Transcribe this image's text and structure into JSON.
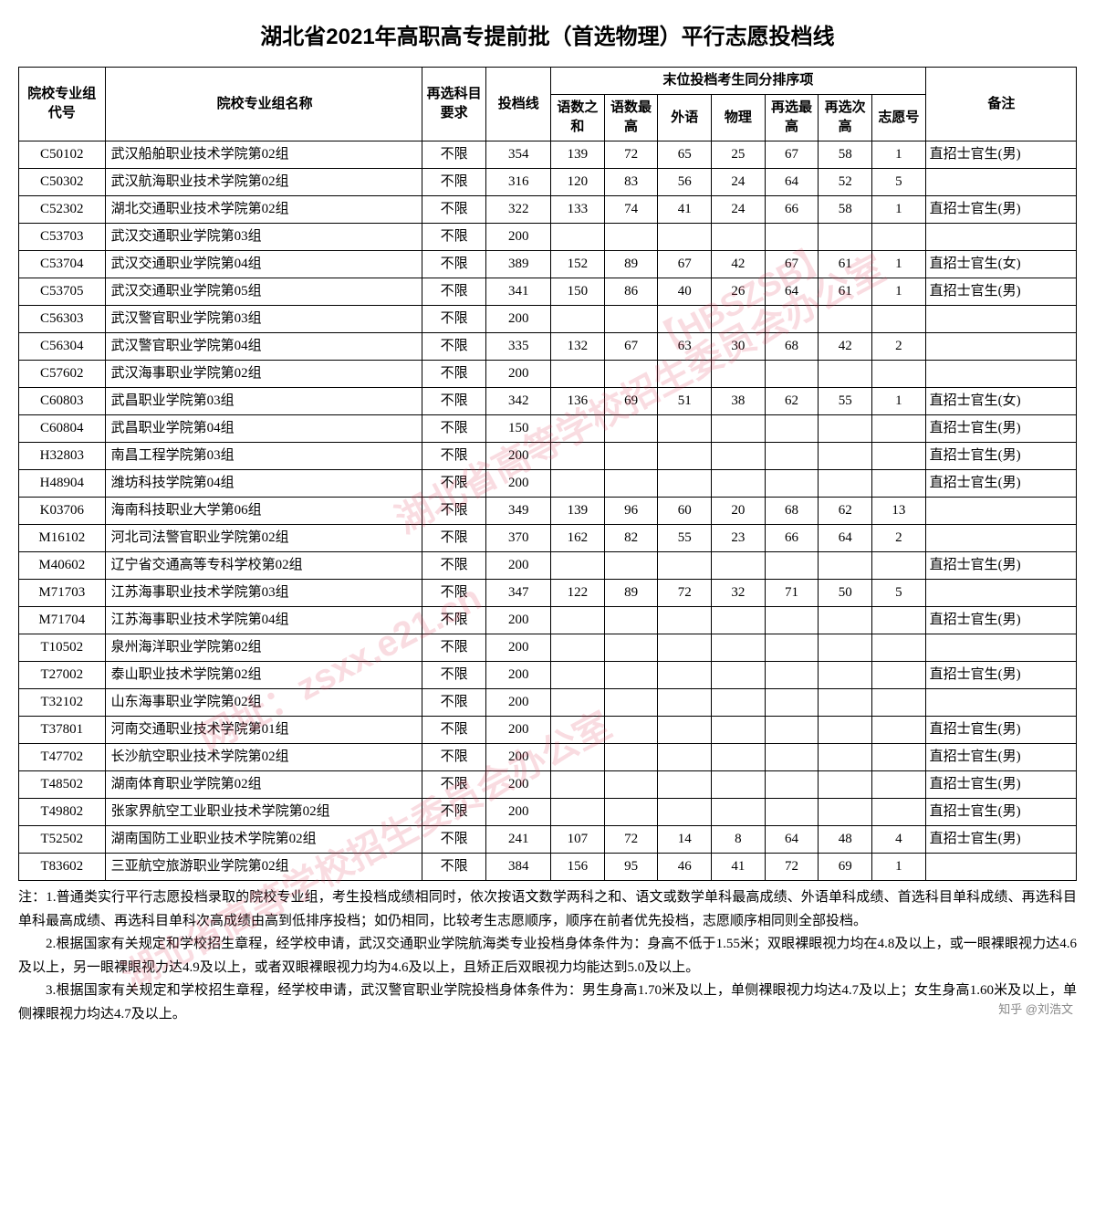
{
  "title": "湖北省2021年高职高专提前批（首选物理）平行志愿投档线",
  "headers": {
    "code": "院校专业组代号",
    "name": "院校专业组名称",
    "requirement": "再选科目要求",
    "score": "投档线",
    "tiebreak_group": "末位投档考生同分排序项",
    "sub1": "语数之和",
    "sub2": "语数最高",
    "sub3": "外语",
    "sub4": "物理",
    "sub5": "再选最高",
    "sub6": "再选次高",
    "sub7": "志愿号",
    "note": "备注"
  },
  "rows": [
    {
      "code": "C50102",
      "name": "武汉船舶职业技术学院第02组",
      "req": "不限",
      "score": "354",
      "s1": "139",
      "s2": "72",
      "s3": "65",
      "s4": "25",
      "s5": "67",
      "s6": "58",
      "s7": "1",
      "note": "直招士官生(男)"
    },
    {
      "code": "C50302",
      "name": "武汉航海职业技术学院第02组",
      "req": "不限",
      "score": "316",
      "s1": "120",
      "s2": "83",
      "s3": "56",
      "s4": "24",
      "s5": "64",
      "s6": "52",
      "s7": "5",
      "note": ""
    },
    {
      "code": "C52302",
      "name": "湖北交通职业技术学院第02组",
      "req": "不限",
      "score": "322",
      "s1": "133",
      "s2": "74",
      "s3": "41",
      "s4": "24",
      "s5": "66",
      "s6": "58",
      "s7": "1",
      "note": "直招士官生(男)"
    },
    {
      "code": "C53703",
      "name": "武汉交通职业学院第03组",
      "req": "不限",
      "score": "200",
      "s1": "",
      "s2": "",
      "s3": "",
      "s4": "",
      "s5": "",
      "s6": "",
      "s7": "",
      "note": ""
    },
    {
      "code": "C53704",
      "name": "武汉交通职业学院第04组",
      "req": "不限",
      "score": "389",
      "s1": "152",
      "s2": "89",
      "s3": "67",
      "s4": "42",
      "s5": "67",
      "s6": "61",
      "s7": "1",
      "note": "直招士官生(女)"
    },
    {
      "code": "C53705",
      "name": "武汉交通职业学院第05组",
      "req": "不限",
      "score": "341",
      "s1": "150",
      "s2": "86",
      "s3": "40",
      "s4": "26",
      "s5": "64",
      "s6": "61",
      "s7": "1",
      "note": "直招士官生(男)"
    },
    {
      "code": "C56303",
      "name": "武汉警官职业学院第03组",
      "req": "不限",
      "score": "200",
      "s1": "",
      "s2": "",
      "s3": "",
      "s4": "",
      "s5": "",
      "s6": "",
      "s7": "",
      "note": ""
    },
    {
      "code": "C56304",
      "name": "武汉警官职业学院第04组",
      "req": "不限",
      "score": "335",
      "s1": "132",
      "s2": "67",
      "s3": "63",
      "s4": "30",
      "s5": "68",
      "s6": "42",
      "s7": "2",
      "note": ""
    },
    {
      "code": "C57602",
      "name": "武汉海事职业学院第02组",
      "req": "不限",
      "score": "200",
      "s1": "",
      "s2": "",
      "s3": "",
      "s4": "",
      "s5": "",
      "s6": "",
      "s7": "",
      "note": ""
    },
    {
      "code": "C60803",
      "name": "武昌职业学院第03组",
      "req": "不限",
      "score": "342",
      "s1": "136",
      "s2": "69",
      "s3": "51",
      "s4": "38",
      "s5": "62",
      "s6": "55",
      "s7": "1",
      "note": "直招士官生(女)"
    },
    {
      "code": "C60804",
      "name": "武昌职业学院第04组",
      "req": "不限",
      "score": "150",
      "s1": "",
      "s2": "",
      "s3": "",
      "s4": "",
      "s5": "",
      "s6": "",
      "s7": "",
      "note": "直招士官生(男)"
    },
    {
      "code": "H32803",
      "name": "南昌工程学院第03组",
      "req": "不限",
      "score": "200",
      "s1": "",
      "s2": "",
      "s3": "",
      "s4": "",
      "s5": "",
      "s6": "",
      "s7": "",
      "note": "直招士官生(男)"
    },
    {
      "code": "H48904",
      "name": "潍坊科技学院第04组",
      "req": "不限",
      "score": "200",
      "s1": "",
      "s2": "",
      "s3": "",
      "s4": "",
      "s5": "",
      "s6": "",
      "s7": "",
      "note": "直招士官生(男)"
    },
    {
      "code": "K03706",
      "name": "海南科技职业大学第06组",
      "req": "不限",
      "score": "349",
      "s1": "139",
      "s2": "96",
      "s3": "60",
      "s4": "20",
      "s5": "68",
      "s6": "62",
      "s7": "13",
      "note": ""
    },
    {
      "code": "M16102",
      "name": "河北司法警官职业学院第02组",
      "req": "不限",
      "score": "370",
      "s1": "162",
      "s2": "82",
      "s3": "55",
      "s4": "23",
      "s5": "66",
      "s6": "64",
      "s7": "2",
      "note": ""
    },
    {
      "code": "M40602",
      "name": "辽宁省交通高等专科学校第02组",
      "req": "不限",
      "score": "200",
      "s1": "",
      "s2": "",
      "s3": "",
      "s4": "",
      "s5": "",
      "s6": "",
      "s7": "",
      "note": "直招士官生(男)"
    },
    {
      "code": "M71703",
      "name": "江苏海事职业技术学院第03组",
      "req": "不限",
      "score": "347",
      "s1": "122",
      "s2": "89",
      "s3": "72",
      "s4": "32",
      "s5": "71",
      "s6": "50",
      "s7": "5",
      "note": ""
    },
    {
      "code": "M71704",
      "name": "江苏海事职业技术学院第04组",
      "req": "不限",
      "score": "200",
      "s1": "",
      "s2": "",
      "s3": "",
      "s4": "",
      "s5": "",
      "s6": "",
      "s7": "",
      "note": "直招士官生(男)"
    },
    {
      "code": "T10502",
      "name": "泉州海洋职业学院第02组",
      "req": "不限",
      "score": "200",
      "s1": "",
      "s2": "",
      "s3": "",
      "s4": "",
      "s5": "",
      "s6": "",
      "s7": "",
      "note": ""
    },
    {
      "code": "T27002",
      "name": "泰山职业技术学院第02组",
      "req": "不限",
      "score": "200",
      "s1": "",
      "s2": "",
      "s3": "",
      "s4": "",
      "s5": "",
      "s6": "",
      "s7": "",
      "note": "直招士官生(男)"
    },
    {
      "code": "T32102",
      "name": "山东海事职业学院第02组",
      "req": "不限",
      "score": "200",
      "s1": "",
      "s2": "",
      "s3": "",
      "s4": "",
      "s5": "",
      "s6": "",
      "s7": "",
      "note": ""
    },
    {
      "code": "T37801",
      "name": "河南交通职业技术学院第01组",
      "req": "不限",
      "score": "200",
      "s1": "",
      "s2": "",
      "s3": "",
      "s4": "",
      "s5": "",
      "s6": "",
      "s7": "",
      "note": "直招士官生(男)"
    },
    {
      "code": "T47702",
      "name": "长沙航空职业技术学院第02组",
      "req": "不限",
      "score": "200",
      "s1": "",
      "s2": "",
      "s3": "",
      "s4": "",
      "s5": "",
      "s6": "",
      "s7": "",
      "note": "直招士官生(男)"
    },
    {
      "code": "T48502",
      "name": "湖南体育职业学院第02组",
      "req": "不限",
      "score": "200",
      "s1": "",
      "s2": "",
      "s3": "",
      "s4": "",
      "s5": "",
      "s6": "",
      "s7": "",
      "note": "直招士官生(男)"
    },
    {
      "code": "T49802",
      "name": "张家界航空工业职业技术学院第02组",
      "req": "不限",
      "score": "200",
      "s1": "",
      "s2": "",
      "s3": "",
      "s4": "",
      "s5": "",
      "s6": "",
      "s7": "",
      "note": "直招士官生(男)"
    },
    {
      "code": "T52502",
      "name": "湖南国防工业职业技术学院第02组",
      "req": "不限",
      "score": "241",
      "s1": "107",
      "s2": "72",
      "s3": "14",
      "s4": "8",
      "s5": "64",
      "s6": "48",
      "s7": "4",
      "note": "直招士官生(男)"
    },
    {
      "code": "T83602",
      "name": "三亚航空旅游职业学院第02组",
      "req": "不限",
      "score": "384",
      "s1": "156",
      "s2": "95",
      "s3": "46",
      "s4": "41",
      "s5": "72",
      "s6": "69",
      "s7": "1",
      "note": ""
    }
  ],
  "footnotes": {
    "n1": "注：1.普通类实行平行志愿投档录取的院校专业组，考生投档成绩相同时，依次按语文数学两科之和、语文或数学单科最高成绩、外语单科成绩、首选科目单科成绩、再选科目单科最高成绩、再选科目单科次高成绩由高到低排序投档；如仍相同，比较考生志愿顺序，顺序在前者优先投档，志愿顺序相同则全部投档。",
    "n2": "2.根据国家有关规定和学校招生章程，经学校申请，武汉交通职业学院航海类专业投档身体条件为：身高不低于1.55米；双眼裸眼视力均在4.8及以上，或一眼裸眼视力达4.6及以上，另一眼裸眼视力达4.9及以上，或者双眼裸眼视力均为4.6及以上，且矫正后双眼视力均能达到5.0及以上。",
    "n3": "3.根据国家有关规定和学校招生章程，经学校申请，武汉警官职业学院投档身体条件为：男生身高1.70米及以上，单侧裸眼视力均达4.7及以上；女生身高1.60米及以上，单侧裸眼视力均达4.7及以上。"
  },
  "watermarks": {
    "wm1": "湖北省高等学校招生委员会办公室",
    "wm2": "网址：zsxx.e21.cn",
    "wm3": "【HBSZSB】",
    "wm4": "湖北省高等学校招生委员会办公室"
  },
  "attribution": "知乎 @刘浩文"
}
